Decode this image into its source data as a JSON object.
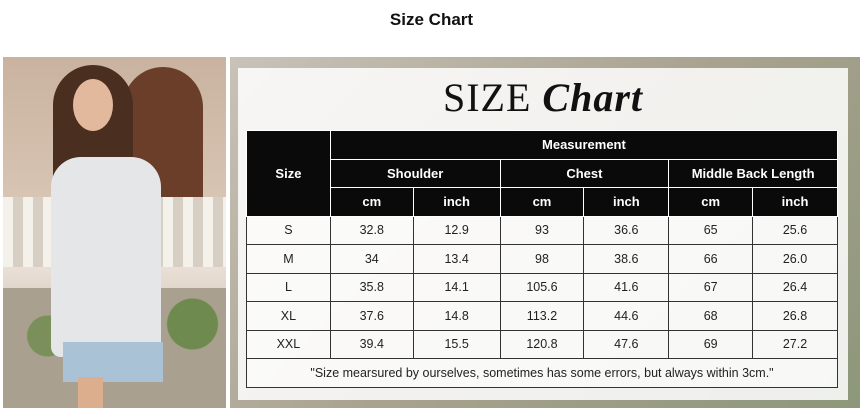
{
  "page_title": "Size Chart",
  "chart_heading": {
    "word1": "SIZE",
    "word2": "Chart"
  },
  "table": {
    "size_header": "Size",
    "measurement_header": "Measurement",
    "groups": [
      "Shoulder",
      "Chest",
      "Middle Back Length"
    ],
    "units": [
      "cm",
      "inch",
      "cm",
      "inch",
      "cm",
      "inch"
    ],
    "rows": [
      [
        "S",
        "32.8",
        "12.9",
        "93",
        "36.6",
        "65",
        "25.6"
      ],
      [
        "M",
        "34",
        "13.4",
        "98",
        "38.6",
        "66",
        "26.0"
      ],
      [
        "L",
        "35.8",
        "14.1",
        "105.6",
        "41.6",
        "67",
        "26.4"
      ],
      [
        "XL",
        "37.6",
        "14.8",
        "113.2",
        "44.6",
        "68",
        "26.8"
      ],
      [
        "XXL",
        "39.4",
        "15.5",
        "120.8",
        "47.6",
        "69",
        "27.2"
      ]
    ],
    "note": "\"Size mearsured by ourselves, sometimes has some errors, but always within 3cm.\""
  }
}
